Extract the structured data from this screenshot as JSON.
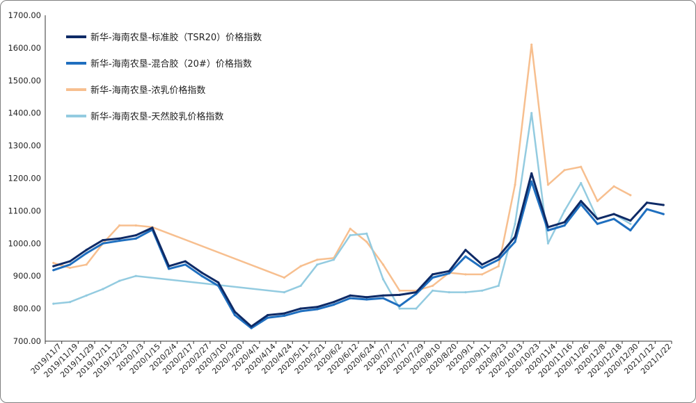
{
  "chart_data": {
    "type": "line",
    "title": "",
    "xlabel": "",
    "ylabel": "",
    "ylim": [
      700,
      1700
    ],
    "yticks": [
      "700.00",
      "800.00",
      "900.00",
      "1000.00",
      "1100.00",
      "1200.00",
      "1300.00",
      "1400.00",
      "1500.00",
      "1600.00",
      "1700.00"
    ],
    "xticks": [
      "2019/11/7",
      "2019/11/19",
      "2019/11/29",
      "2019/12/11",
      "2019/12/23",
      "2020/1/3",
      "2020/1/15",
      "2020/2/4",
      "2020/2/17",
      "2020/2/27",
      "2020/3/10",
      "2020/3/20",
      "2020/4/1",
      "2020/4/14",
      "2020/4/24",
      "2020/5/11",
      "2020/5/21",
      "2020/6/2",
      "2020/6/12",
      "2020/6/24",
      "2020/7/7",
      "2020/7/17",
      "2020/7/29",
      "2020/8/10",
      "2020/8/20",
      "2020/9/1",
      "2020/9/11",
      "2020/9/23",
      "2020/10/13",
      "2020/10/23",
      "2020/11/4",
      "2020/11/16",
      "2020/11/26",
      "2020/12/8",
      "2020/12/18",
      "2020/12/30",
      "2021/1/12",
      "2021/1/22"
    ],
    "grid": false,
    "legend_position": "top-left",
    "series": [
      {
        "name": "新华-海南农垦-标准胶（TSR20）价格指数",
        "color": "#0e2a66",
        "x": [
          "2019/11/7",
          "2019/11/19",
          "2019/11/29",
          "2019/12/11",
          "2019/12/23",
          "2020/1/3",
          "2020/1/15",
          "2020/2/4",
          "2020/2/17",
          "2020/2/27",
          "2020/3/10",
          "2020/3/20",
          "2020/4/1",
          "2020/4/14",
          "2020/4/24",
          "2020/5/11",
          "2020/5/21",
          "2020/6/2",
          "2020/6/12",
          "2020/6/24",
          "2020/7/7",
          "2020/7/17",
          "2020/7/29",
          "2020/8/10",
          "2020/8/20",
          "2020/9/1",
          "2020/9/11",
          "2020/9/23",
          "2020/10/13",
          "2020/10/23",
          "2020/11/4",
          "2020/11/16",
          "2020/11/26",
          "2020/12/8",
          "2020/12/18",
          "2020/12/30",
          "2021/1/12",
          "2021/1/22"
        ],
        "values": [
          930,
          945,
          980,
          1010,
          1015,
          1025,
          1048,
          930,
          945,
          910,
          880,
          790,
          745,
          780,
          785,
          800,
          805,
          820,
          840,
          835,
          840,
          842,
          850,
          905,
          915,
          980,
          935,
          960,
          1020,
          1215,
          1050,
          1065,
          1130,
          1075,
          1090,
          1070,
          1125,
          1118
        ]
      },
      {
        "name": "新华-海南农垦-混合胶（20#）价格指数",
        "color": "#1f6fbf",
        "x": [
          "2019/11/7",
          "2019/11/19",
          "2019/11/29",
          "2019/12/11",
          "2019/12/23",
          "2020/1/3",
          "2020/1/15",
          "2020/2/4",
          "2020/2/17",
          "2020/2/27",
          "2020/3/10",
          "2020/3/20",
          "2020/4/1",
          "2020/4/14",
          "2020/4/24",
          "2020/5/11",
          "2020/5/21",
          "2020/6/2",
          "2020/6/12",
          "2020/6/24",
          "2020/7/7",
          "2020/7/17",
          "2020/7/29",
          "2020/8/10",
          "2020/8/20",
          "2020/9/1",
          "2020/9/11",
          "2020/9/23",
          "2020/10/13",
          "2020/10/23",
          "2020/11/4",
          "2020/11/16",
          "2020/11/26",
          "2020/12/8",
          "2020/12/18",
          "2020/12/30",
          "2021/1/12",
          "2021/1/22"
        ],
        "values": [
          918,
          935,
          970,
          1000,
          1008,
          1015,
          1042,
          922,
          935,
          900,
          870,
          780,
          740,
          772,
          778,
          792,
          798,
          812,
          832,
          828,
          832,
          808,
          845,
          895,
          908,
          960,
          925,
          950,
          1005,
          1190,
          1040,
          1055,
          1120,
          1060,
          1075,
          1040,
          1105,
          1090
        ]
      },
      {
        "name": "新华-海南农垦-浓乳价格指数",
        "color": "#f7bf8f",
        "x": [
          "2019/11/7",
          "2019/11/19",
          "2019/11/29",
          "2019/12/11",
          "2019/12/23",
          "2020/1/3",
          "2020/1/15",
          "2020/4/24",
          "2020/5/11",
          "2020/5/21",
          "2020/6/2",
          "2020/6/12",
          "2020/6/24",
          "2020/7/7",
          "2020/7/17",
          "2020/7/29",
          "2020/8/10",
          "2020/8/20",
          "2020/9/1",
          "2020/9/11",
          "2020/9/23",
          "2020/10/13",
          "2020/10/23",
          "2020/11/4",
          "2020/11/16",
          "2020/11/26",
          "2020/12/8",
          "2020/12/18",
          "2020/12/30"
        ],
        "values": [
          940,
          925,
          935,
          1000,
          1055,
          1055,
          1050,
          895,
          930,
          950,
          955,
          1045,
          1005,
          935,
          855,
          855,
          870,
          910,
          905,
          905,
          930,
          1180,
          1610,
          1180,
          1225,
          1235,
          1130,
          1175,
          1148
        ]
      },
      {
        "name": "新华-海南农垦-天然胶乳价格指数",
        "color": "#93cbe0",
        "x": [
          "2019/11/7",
          "2019/11/19",
          "2019/11/29",
          "2019/12/11",
          "2019/12/23",
          "2020/1/3",
          "2020/4/24",
          "2020/5/11",
          "2020/5/21",
          "2020/6/2",
          "2020/6/12",
          "2020/6/24",
          "2020/7/7",
          "2020/7/17",
          "2020/7/29",
          "2020/8/10",
          "2020/8/20",
          "2020/9/1",
          "2020/9/11",
          "2020/9/23",
          "2020/10/13",
          "2020/10/23",
          "2020/11/4",
          "2020/11/16",
          "2020/11/26",
          "2020/12/8",
          "2020/12/18",
          "2020/12/30"
        ],
        "values": [
          815,
          820,
          840,
          860,
          885,
          900,
          850,
          870,
          935,
          950,
          1025,
          1030,
          890,
          800,
          800,
          855,
          850,
          850,
          855,
          870,
          1060,
          1400,
          1000,
          1100,
          1185,
          1075,
          1090,
          1060
        ]
      }
    ]
  }
}
